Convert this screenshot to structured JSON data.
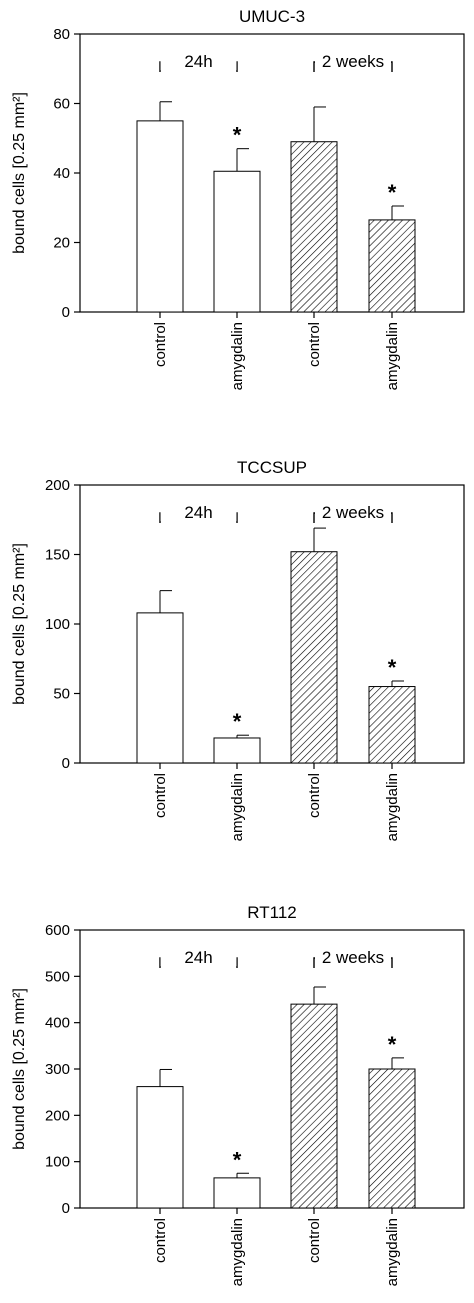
{
  "chart_data": [
    {
      "type": "bar",
      "title": "UMUC-3",
      "ylabel": "bound cells [0.25 mm²]",
      "ylim": [
        0,
        80
      ],
      "yticks": [
        0,
        20,
        40,
        60,
        80
      ],
      "categories": [
        "control",
        "amygdalin",
        "control",
        "amygdalin"
      ],
      "values": [
        55,
        40.5,
        49,
        26.5
      ],
      "errors": [
        5.5,
        6.5,
        10,
        4
      ],
      "patterns": [
        "open",
        "open",
        "hatched",
        "hatched"
      ],
      "significant": [
        false,
        true,
        false,
        true
      ],
      "significance_marker": "*",
      "groups": [
        {
          "label": "24h",
          "categories": [
            "control",
            "amygdalin"
          ]
        },
        {
          "label": "2 weeks",
          "categories": [
            "control",
            "amygdalin"
          ]
        }
      ],
      "grid": false
    },
    {
      "type": "bar",
      "title": "TCCSUP",
      "ylabel": "bound cells [0.25 mm²]",
      "ylim": [
        0,
        200
      ],
      "yticks": [
        0,
        50,
        100,
        150,
        200
      ],
      "categories": [
        "control",
        "amygdalin",
        "control",
        "amygdalin"
      ],
      "values": [
        108,
        18,
        152,
        55
      ],
      "errors": [
        16,
        2,
        17,
        4
      ],
      "patterns": [
        "open",
        "open",
        "hatched",
        "hatched"
      ],
      "significant": [
        false,
        true,
        false,
        true
      ],
      "significance_marker": "*",
      "groups": [
        {
          "label": "24h",
          "categories": [
            "control",
            "amygdalin"
          ]
        },
        {
          "label": "2 weeks",
          "categories": [
            "control",
            "amygdalin"
          ]
        }
      ],
      "grid": false
    },
    {
      "type": "bar",
      "title": "RT112",
      "ylabel": "bound cells [0.25 mm²]",
      "ylim": [
        0,
        600
      ],
      "yticks": [
        0,
        100,
        200,
        300,
        400,
        500,
        600
      ],
      "categories": [
        "control",
        "amygdalin",
        "control",
        "amygdalin"
      ],
      "values": [
        262,
        65,
        440,
        300
      ],
      "errors": [
        37,
        10,
        37,
        24
      ],
      "patterns": [
        "open",
        "open",
        "hatched",
        "hatched"
      ],
      "significant": [
        false,
        true,
        false,
        true
      ],
      "significance_marker": "*",
      "groups": [
        {
          "label": "24h",
          "categories": [
            "control",
            "amygdalin"
          ]
        },
        {
          "label": "2 weeks",
          "categories": [
            "control",
            "amygdalin"
          ]
        }
      ],
      "grid": false
    }
  ]
}
